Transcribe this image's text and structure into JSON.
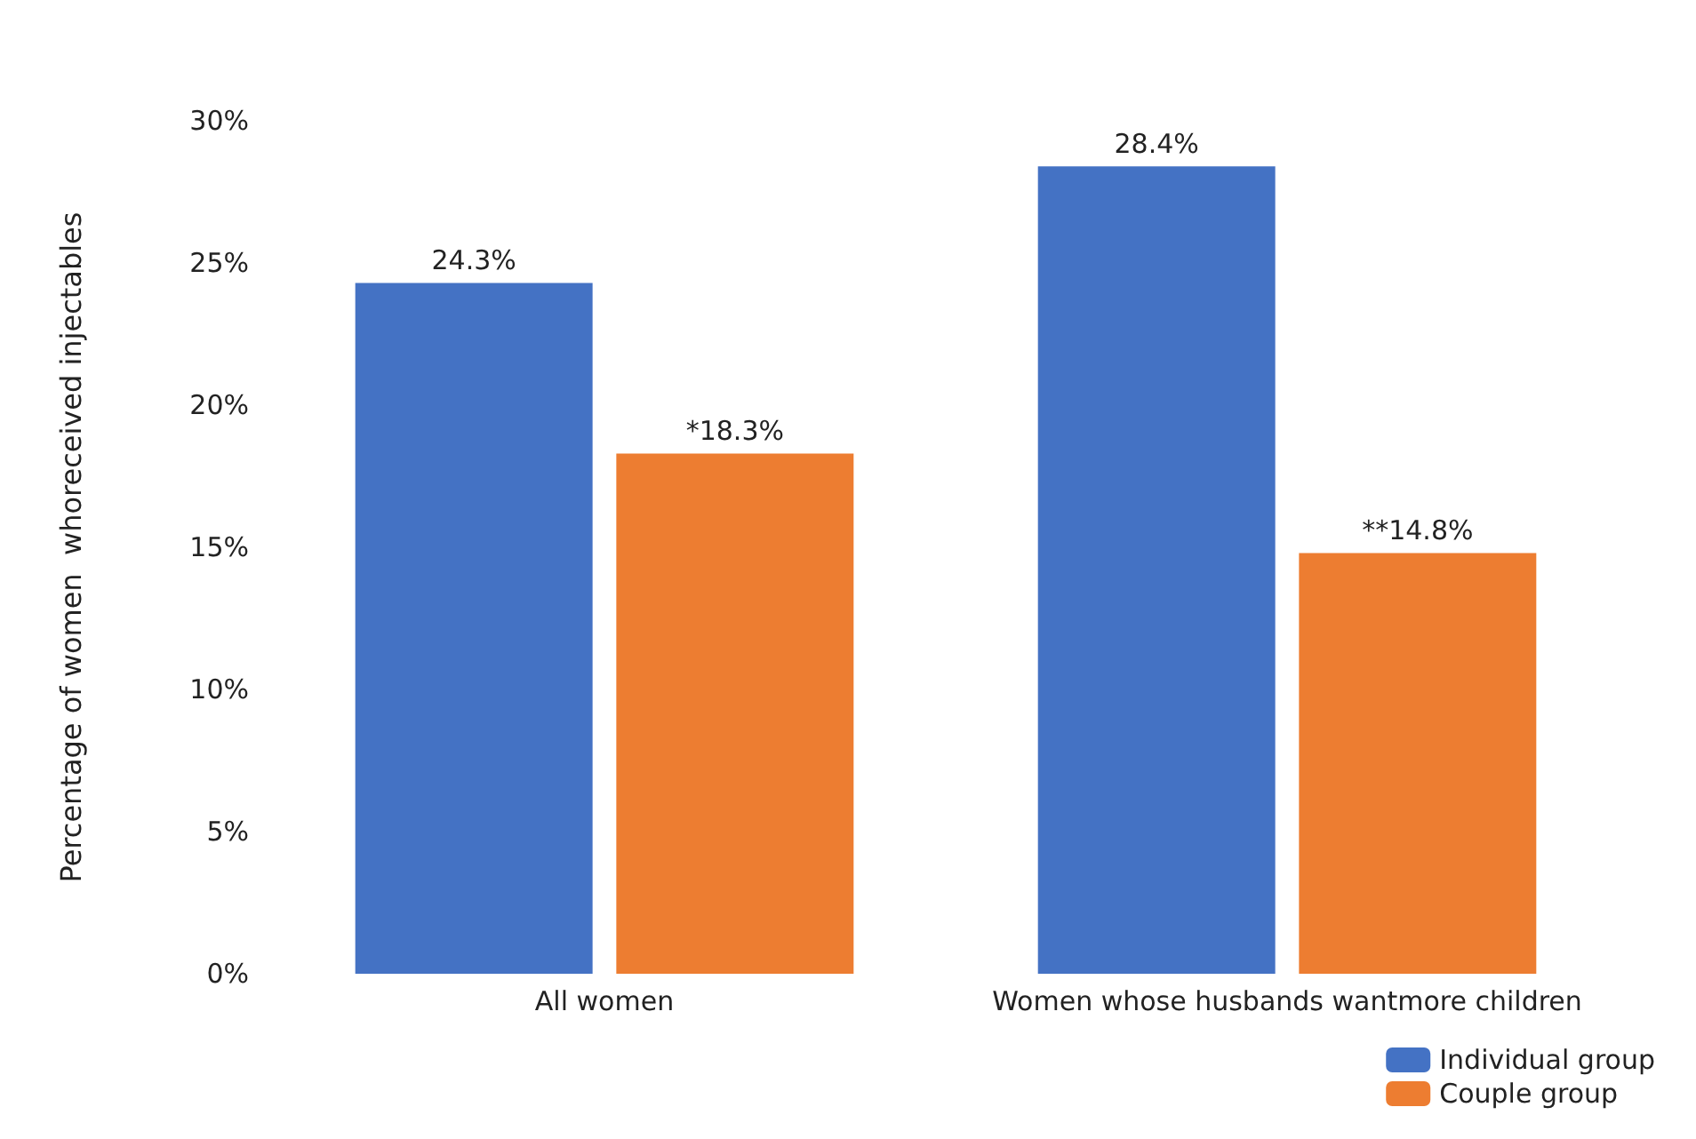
{
  "chart_data": {
    "type": "bar",
    "ylabel": "Percentage of women  whoreceived injectables",
    "categories": [
      "All women",
      "Women whose husbands wantmore children"
    ],
    "series": [
      {
        "name": "Individual group",
        "color": "#4472c4",
        "values": [
          24.3,
          28.4
        ],
        "value_labels": [
          "24.3%",
          "28.4%"
        ]
      },
      {
        "name": "Couple group",
        "color": "#ed7d31",
        "values": [
          18.3,
          14.8
        ],
        "value_labels": [
          "*18.3%",
          "**14.8%"
        ]
      }
    ],
    "ylim": [
      0,
      30
    ],
    "yticks": [
      {
        "value": 0,
        "label": "0%"
      },
      {
        "value": 5,
        "label": "5%"
      },
      {
        "value": 10,
        "label": "10%"
      },
      {
        "value": 15,
        "label": "15%"
      },
      {
        "value": 20,
        "label": "20%"
      },
      {
        "value": 25,
        "label": "25%"
      },
      {
        "value": 30,
        "label": "30%"
      }
    ],
    "grid": false,
    "legend": "bottom right"
  }
}
